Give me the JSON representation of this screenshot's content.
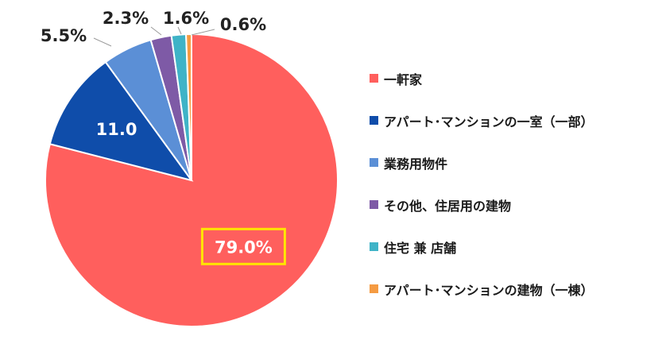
{
  "chart_data": {
    "type": "pie",
    "title": "",
    "categories": [
      "一軒家",
      "アパート･マンションの一室（一部）",
      "業務用物件",
      "その他、住居用の建物",
      "住宅 兼 店舗",
      "アパート･マンションの建物（一棟）"
    ],
    "values": [
      79.0,
      11.0,
      5.5,
      2.3,
      1.6,
      0.6
    ],
    "data_labels": [
      "79.0%",
      "11.0",
      "5.5%",
      "2.3%",
      "1.6%",
      "0.6%"
    ],
    "colors": [
      "#FF5F5D",
      "#0F4DAA",
      "#5B8FD6",
      "#7E5AA6",
      "#3FB3C7",
      "#F59B42"
    ],
    "highlight_color": "#FFE600",
    "start_angle_deg": 0,
    "direction": "clockwise",
    "legend_position": "right"
  }
}
